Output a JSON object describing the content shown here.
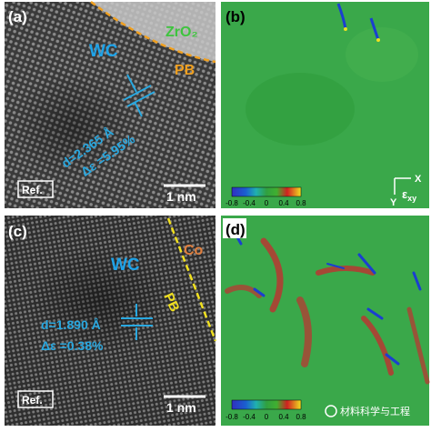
{
  "panels": [
    {
      "label": "(a)",
      "phase": "ZrO₂",
      "material": "WC",
      "interface": "PB",
      "spacing": "d=2.365 Å",
      "strain": "Δε =5.95%",
      "reference": "Ref.",
      "scale_bar": "1 nm"
    },
    {
      "label": "(b)",
      "colorbar_ticks": [
        "-0.8",
        "-0.4",
        "0",
        "0.4",
        "0.8"
      ],
      "axis_x": "X",
      "axis_y": "Y",
      "strain_symbol": "ε",
      "strain_subscript": "xy"
    },
    {
      "label": "(c)",
      "phase": "Co",
      "material": "WC",
      "interface": "PB",
      "spacing": "d=1.890 Å",
      "strain": "Δε =0.38%",
      "reference": "Ref.",
      "scale_bar": "1 nm"
    },
    {
      "label": "(d)",
      "colorbar_ticks": [
        "-0.8",
        "-0.4",
        "0",
        "0.4",
        "0.8"
      ]
    }
  ],
  "watermark": "材料科学与工程"
}
